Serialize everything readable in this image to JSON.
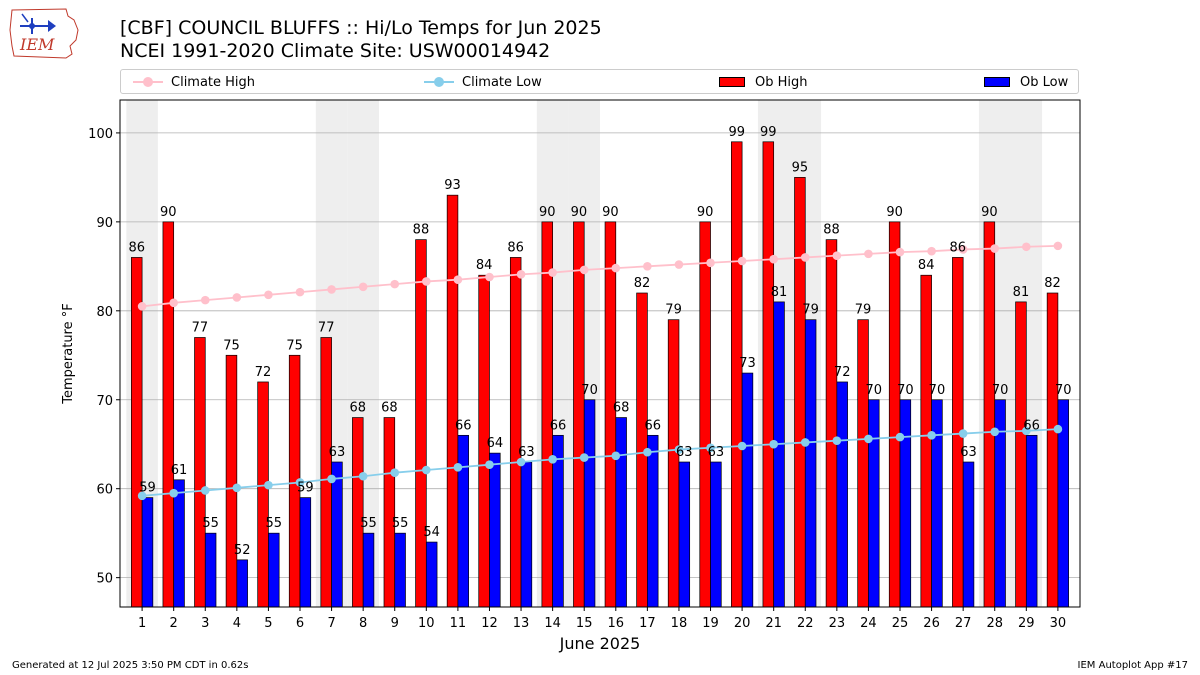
{
  "header": {
    "title_line1": "[CBF] COUNCIL BLUFFS :: Hi/Lo Temps for Jun 2025",
    "title_line2": "NCEI 1991-2020 Climate Site: USW00014942",
    "logo_text": "IEM"
  },
  "footer": {
    "generated": "Generated at 12 Jul 2025 3:50 PM CDT in 0.62s",
    "app": "IEM Autoplot App #17"
  },
  "legend": {
    "climate_high": "Climate High",
    "climate_low": "Climate Low",
    "ob_high": "Ob High",
    "ob_low": "Ob Low"
  },
  "colors": {
    "ob_high": "#ff0000",
    "ob_low": "#0000ff",
    "climate_high": "#ffc0cb",
    "climate_low": "#87ceeb",
    "weekend_shade": "#eeeeee",
    "grid": "#b0b0b0"
  },
  "chart_data": {
    "type": "bar",
    "xlabel": "June 2025",
    "ylabel": "Temperature $^\\circ$F",
    "ylim": [
      46.7,
      103.7
    ],
    "yticks": [
      50,
      60,
      70,
      80,
      90,
      100
    ],
    "categories": [
      "1",
      "2",
      "3",
      "4",
      "5",
      "6",
      "7",
      "8",
      "9",
      "10",
      "11",
      "12",
      "13",
      "14",
      "15",
      "16",
      "17",
      "18",
      "19",
      "20",
      "21",
      "22",
      "23",
      "24",
      "25",
      "26",
      "27",
      "28",
      "29",
      "30"
    ],
    "shaded_days": [
      1,
      7,
      8,
      14,
      15,
      21,
      22,
      28,
      29
    ],
    "grid": "horizontal",
    "legend_position": "top",
    "series": [
      {
        "name": "Ob High",
        "kind": "bar",
        "values": [
          86,
          90,
          77,
          75,
          72,
          75,
          77,
          68,
          68,
          88,
          93,
          84,
          86,
          90,
          90,
          90,
          82,
          79,
          90,
          99,
          99,
          95,
          88,
          79,
          90,
          84,
          86,
          90,
          81,
          82
        ]
      },
      {
        "name": "Ob Low",
        "kind": "bar",
        "values": [
          59,
          61,
          55,
          52,
          55,
          59,
          63,
          55,
          55,
          54,
          66,
          64,
          63,
          66,
          70,
          68,
          66,
          63,
          63,
          73,
          81,
          79,
          72,
          70,
          70,
          70,
          63,
          70,
          66,
          70
        ]
      },
      {
        "name": "Climate High",
        "kind": "line",
        "values": [
          80.5,
          80.9,
          81.2,
          81.5,
          81.8,
          82.1,
          82.4,
          82.7,
          83.0,
          83.3,
          83.5,
          83.8,
          84.1,
          84.3,
          84.6,
          84.8,
          85.0,
          85.2,
          85.4,
          85.6,
          85.8,
          86.0,
          86.2,
          86.4,
          86.6,
          86.7,
          86.9,
          87.0,
          87.2,
          87.3
        ]
      },
      {
        "name": "Climate Low",
        "kind": "line",
        "values": [
          59.2,
          59.5,
          59.8,
          60.1,
          60.4,
          60.7,
          61.1,
          61.4,
          61.8,
          62.1,
          62.4,
          62.7,
          63.0,
          63.3,
          63.5,
          63.7,
          64.1,
          64.4,
          64.6,
          64.8,
          65.0,
          65.2,
          65.4,
          65.6,
          65.8,
          66.0,
          66.2,
          66.4,
          66.5,
          66.7
        ]
      }
    ]
  }
}
